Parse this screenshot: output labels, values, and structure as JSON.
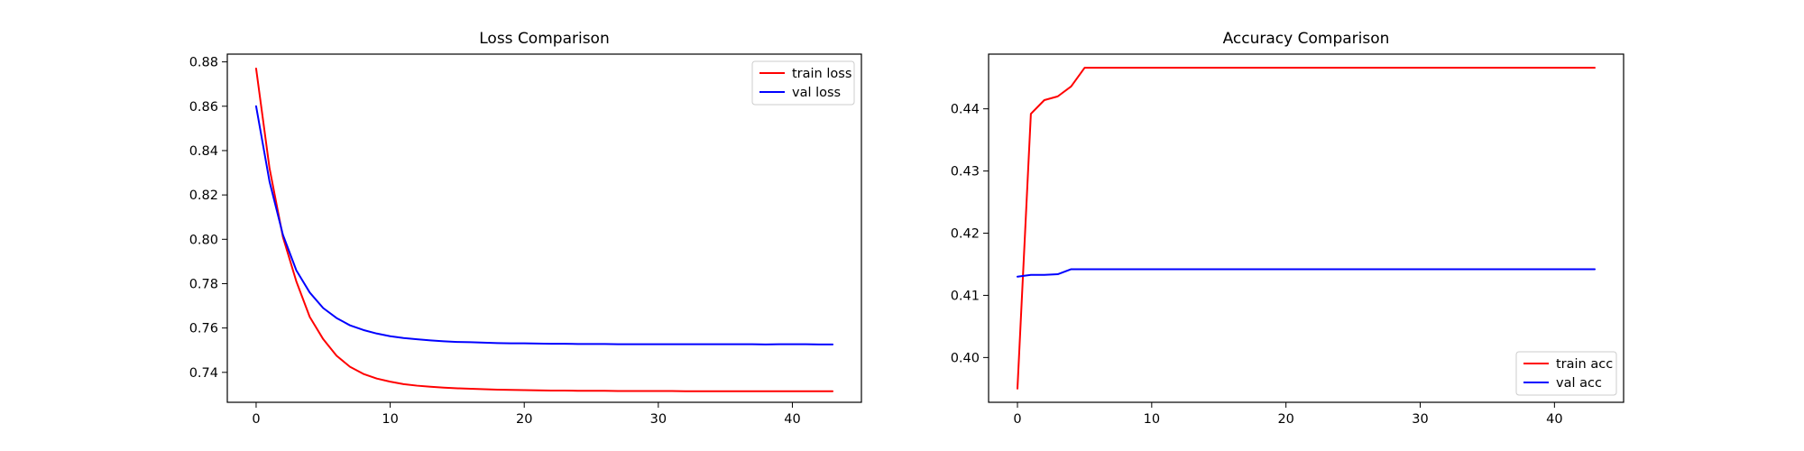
{
  "chart_data": [
    {
      "type": "line",
      "title": "Loss Comparison",
      "xlabel": "",
      "ylabel": "",
      "xlim": [
        -2.15,
        45.15
      ],
      "ylim": [
        0.7265,
        0.8835
      ],
      "xticks": [
        0,
        10,
        20,
        30,
        40
      ],
      "yticks": [
        0.74,
        0.76,
        0.78,
        0.8,
        0.82,
        0.84,
        0.86,
        0.88
      ],
      "ytick_labels": [
        "0.74",
        "0.76",
        "0.78",
        "0.80",
        "0.82",
        "0.84",
        "0.86",
        "0.88"
      ],
      "grid": false,
      "legend_position": "top-right",
      "series": [
        {
          "name": "train loss",
          "color": "#ff0000",
          "x": [
            0,
            1,
            2,
            3,
            4,
            5,
            6,
            7,
            8,
            9,
            10,
            11,
            12,
            13,
            14,
            15,
            16,
            17,
            18,
            19,
            20,
            21,
            22,
            23,
            24,
            25,
            26,
            27,
            28,
            29,
            30,
            31,
            32,
            33,
            34,
            35,
            36,
            37,
            38,
            39,
            40,
            41,
            42,
            43
          ],
          "y": [
            0.877,
            0.832,
            0.801,
            0.781,
            0.765,
            0.755,
            0.7475,
            0.7425,
            0.7393,
            0.7372,
            0.7358,
            0.7347,
            0.734,
            0.7335,
            0.7331,
            0.7328,
            0.7326,
            0.7324,
            0.7322,
            0.7321,
            0.732,
            0.7319,
            0.7318,
            0.7318,
            0.7317,
            0.7317,
            0.7317,
            0.7316,
            0.7316,
            0.7316,
            0.7316,
            0.7316,
            0.7315,
            0.7315,
            0.7315,
            0.7315,
            0.7315,
            0.7315,
            0.7315,
            0.7315,
            0.7315,
            0.7315,
            0.7315,
            0.7315
          ]
        },
        {
          "name": "val loss",
          "color": "#0000ff",
          "x": [
            0,
            1,
            2,
            3,
            4,
            5,
            6,
            7,
            8,
            9,
            10,
            11,
            12,
            13,
            14,
            15,
            16,
            17,
            18,
            19,
            20,
            21,
            22,
            23,
            24,
            25,
            26,
            27,
            28,
            29,
            30,
            31,
            32,
            33,
            34,
            35,
            36,
            37,
            38,
            39,
            40,
            41,
            42,
            43
          ],
          "y": [
            0.86,
            0.826,
            0.802,
            0.786,
            0.776,
            0.769,
            0.7645,
            0.7612,
            0.7591,
            0.7575,
            0.7563,
            0.7555,
            0.7549,
            0.7544,
            0.754,
            0.7537,
            0.7536,
            0.7534,
            0.7532,
            0.7531,
            0.7531,
            0.753,
            0.7529,
            0.7529,
            0.7528,
            0.7528,
            0.7528,
            0.7527,
            0.7527,
            0.7527,
            0.7527,
            0.7527,
            0.7527,
            0.7527,
            0.7527,
            0.7527,
            0.7527,
            0.7527,
            0.7526,
            0.7527,
            0.7527,
            0.7527,
            0.7526,
            0.7526
          ]
        }
      ]
    },
    {
      "type": "line",
      "title": "Accuracy Comparison",
      "xlabel": "",
      "ylabel": "",
      "xlim": [
        -2.15,
        45.15
      ],
      "ylim": [
        0.3928,
        0.4488
      ],
      "xticks": [
        0,
        10,
        20,
        30,
        40
      ],
      "yticks": [
        0.4,
        0.41,
        0.42,
        0.43,
        0.44
      ],
      "ytick_labels": [
        "0.40",
        "0.41",
        "0.42",
        "0.43",
        "0.44"
      ],
      "grid": false,
      "legend_position": "bottom-right",
      "series": [
        {
          "name": "train acc",
          "color": "#ff0000",
          "x": [
            0,
            1,
            2,
            3,
            4,
            5,
            6,
            7,
            8,
            9,
            10,
            11,
            12,
            13,
            14,
            15,
            16,
            17,
            18,
            19,
            20,
            21,
            22,
            23,
            24,
            25,
            26,
            27,
            28,
            29,
            30,
            31,
            32,
            33,
            34,
            35,
            36,
            37,
            38,
            39,
            40,
            41,
            42,
            43
          ],
          "y": [
            0.395,
            0.4392,
            0.4414,
            0.442,
            0.4436,
            0.4466,
            0.4466,
            0.4466,
            0.4466,
            0.4466,
            0.4466,
            0.4466,
            0.4466,
            0.4466,
            0.4466,
            0.4466,
            0.4466,
            0.4466,
            0.4466,
            0.4466,
            0.4466,
            0.4466,
            0.4466,
            0.4466,
            0.4466,
            0.4466,
            0.4466,
            0.4466,
            0.4466,
            0.4466,
            0.4466,
            0.4466,
            0.4466,
            0.4466,
            0.4466,
            0.4466,
            0.4466,
            0.4466,
            0.4466,
            0.4466,
            0.4466,
            0.4466,
            0.4466,
            0.4466
          ]
        },
        {
          "name": "val acc",
          "color": "#0000ff",
          "x": [
            0,
            1,
            2,
            3,
            4,
            5,
            6,
            7,
            8,
            9,
            10,
            11,
            12,
            13,
            14,
            15,
            16,
            17,
            18,
            19,
            20,
            21,
            22,
            23,
            24,
            25,
            26,
            27,
            28,
            29,
            30,
            31,
            32,
            33,
            34,
            35,
            36,
            37,
            38,
            39,
            40,
            41,
            42,
            43
          ],
          "y": [
            0.413,
            0.4133,
            0.4133,
            0.4134,
            0.4142,
            0.4142,
            0.4142,
            0.4142,
            0.4142,
            0.4142,
            0.4142,
            0.4142,
            0.4142,
            0.4142,
            0.4142,
            0.4142,
            0.4142,
            0.4142,
            0.4142,
            0.4142,
            0.4142,
            0.4142,
            0.4142,
            0.4142,
            0.4142,
            0.4142,
            0.4142,
            0.4142,
            0.4142,
            0.4142,
            0.4142,
            0.4142,
            0.4142,
            0.4142,
            0.4142,
            0.4142,
            0.4142,
            0.4142,
            0.4142,
            0.4142,
            0.4142,
            0.4142,
            0.4142,
            0.4142
          ]
        }
      ]
    }
  ]
}
